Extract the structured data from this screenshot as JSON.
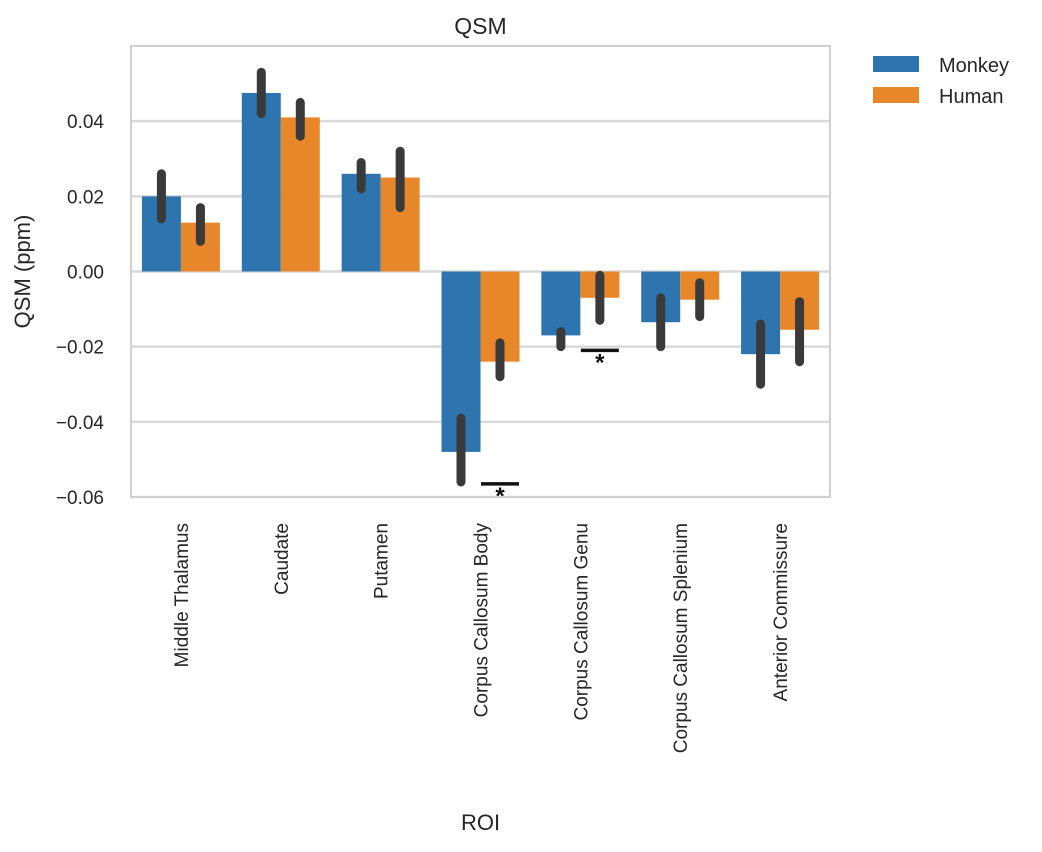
{
  "chart_data": {
    "type": "bar",
    "title": "QSM",
    "xlabel": "ROI",
    "ylabel": "QSM (ppm)",
    "ylim": [
      -0.06,
      0.06
    ],
    "yticks": [
      0.04,
      0.02,
      0.0,
      -0.02,
      -0.04,
      -0.06
    ],
    "ytick_labels": [
      "0.04",
      "0.02",
      "0.00",
      "−0.02",
      "−0.04",
      "−0.06"
    ],
    "grid": true,
    "legend_position": "outside top-right",
    "categories": [
      "Middle Thalamus",
      "Caudate",
      "Putamen",
      "Corpus Callosum Body",
      "Corpus Callosum Genu",
      "Corpus Callosum Splenium",
      "Anterior Commissure"
    ],
    "series": [
      {
        "name": "Monkey",
        "color": "#2e75b0",
        "values": [
          0.02,
          0.0475,
          0.026,
          -0.048,
          -0.017,
          -0.0135,
          -0.022
        ],
        "ci_low": [
          0.014,
          0.042,
          0.022,
          -0.056,
          -0.02,
          -0.02,
          -0.03
        ],
        "ci_high": [
          0.026,
          0.053,
          0.029,
          -0.039,
          -0.016,
          -0.007,
          -0.014
        ]
      },
      {
        "name": "Human",
        "color": "#e8862a",
        "values": [
          0.013,
          0.041,
          0.025,
          -0.024,
          -0.007,
          -0.0075,
          -0.0155
        ],
        "ci_low": [
          0.008,
          0.036,
          0.017,
          -0.028,
          -0.013,
          -0.012,
          -0.024
        ],
        "ci_high": [
          0.017,
          0.045,
          0.032,
          -0.019,
          -0.001,
          -0.003,
          -0.008
        ]
      }
    ],
    "annotations": [
      {
        "text": "*",
        "category": "Corpus Callosum Body",
        "y": -0.0565
      },
      {
        "text": "*",
        "category": "Corpus Callosum Genu",
        "y": -0.021
      }
    ],
    "ci_color": "#3a3a3a",
    "grid_color": "#d9d9d9"
  }
}
